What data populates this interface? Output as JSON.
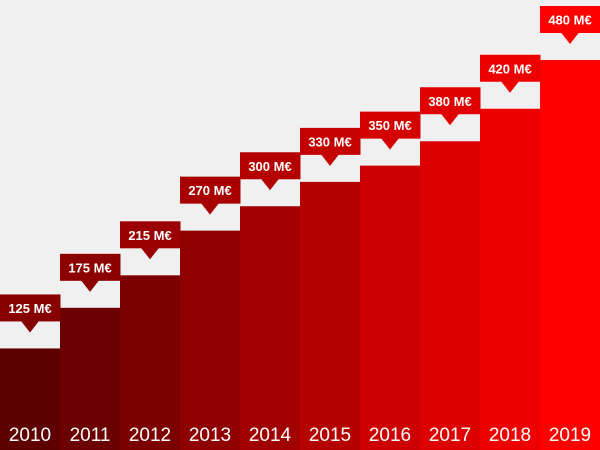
{
  "chart_data": {
    "type": "bar",
    "categories": [
      "2010",
      "2011",
      "2012",
      "2013",
      "2014",
      "2015",
      "2016",
      "2017",
      "2018",
      "2019"
    ],
    "values": [
      125,
      175,
      215,
      270,
      300,
      330,
      350,
      380,
      420,
      480
    ],
    "value_labels": [
      "125 M€",
      "175 M€",
      "215 M€",
      "270 M€",
      "300 M€",
      "330 M€",
      "350 M€",
      "380 M€",
      "420 M€",
      "480 M€"
    ],
    "title": "",
    "xlabel": "",
    "ylabel": "",
    "ylim": [
      0,
      480
    ],
    "grid": false,
    "colors": [
      "#5e0000",
      "#6b0000",
      "#7d0000",
      "#8f0000",
      "#a00000",
      "#b50000",
      "#cc0000",
      "#dd0000",
      "#ee0000",
      "#ff0000"
    ],
    "label_box_colors": [
      "#870000",
      "#8c0000",
      "#9b0000",
      "#a80000",
      "#b50000",
      "#c40000",
      "#d40000",
      "#e00000",
      "#ee0000",
      "#ff0000"
    ]
  }
}
